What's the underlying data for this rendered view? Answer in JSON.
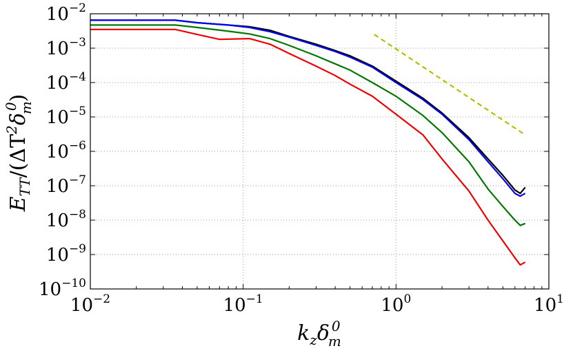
{
  "chart_data": {
    "type": "line",
    "title": "",
    "xscale": "log",
    "yscale": "log",
    "xlim": [
      0.01,
      10
    ],
    "ylim": [
      1e-10,
      0.01
    ],
    "xlabel": "k_z δ_m^0",
    "ylabel": "E_TT/(ΔT^2 δ_m^0)",
    "xticks": [
      {
        "base": "10",
        "exp": "−2"
      },
      {
        "base": "10",
        "exp": "−1"
      },
      {
        "base": "10",
        "exp": "0"
      },
      {
        "base": "10",
        "exp": "1"
      }
    ],
    "yticks": [
      {
        "base": "10",
        "exp": "−10"
      },
      {
        "base": "10",
        "exp": "−9"
      },
      {
        "base": "10",
        "exp": "−8"
      },
      {
        "base": "10",
        "exp": "−7"
      },
      {
        "base": "10",
        "exp": "−6"
      },
      {
        "base": "10",
        "exp": "−5"
      },
      {
        "base": "10",
        "exp": "−4"
      },
      {
        "base": "10",
        "exp": "−3"
      },
      {
        "base": "10",
        "exp": "−2"
      }
    ],
    "grid": true,
    "series": [
      {
        "name": "black",
        "color": "#000000",
        "style": "solid",
        "x": [
          0.01,
          0.036,
          0.05,
          0.08,
          0.11,
          0.15,
          0.2,
          0.3,
          0.4,
          0.5,
          0.7,
          1.0,
          1.5,
          2.0,
          3.0,
          4.0,
          5.0,
          6.0,
          6.5,
          7.0
        ],
        "y": [
          0.0065,
          0.0065,
          0.0055,
          0.0047,
          0.0042,
          0.0033,
          0.0022,
          0.0013,
          0.00085,
          0.0006,
          0.0003,
          0.00011,
          3.5e-05,
          1.3e-05,
          2.5e-06,
          6e-07,
          2e-07,
          7.5e-08,
          6e-08,
          9e-08
        ]
      },
      {
        "name": "blue",
        "color": "#0000ee",
        "style": "solid",
        "x": [
          0.01,
          0.036,
          0.05,
          0.08,
          0.11,
          0.15,
          0.2,
          0.3,
          0.4,
          0.5,
          0.7,
          1.0,
          1.5,
          2.0,
          3.0,
          4.0,
          5.0,
          6.0,
          6.5,
          7.0
        ],
        "y": [
          0.0065,
          0.0065,
          0.0055,
          0.0047,
          0.004,
          0.003,
          0.0021,
          0.0012,
          0.0008,
          0.00055,
          0.00028,
          0.0001,
          3.2e-05,
          1.2e-05,
          2.2e-06,
          5e-07,
          1.6e-07,
          6e-08,
          5e-08,
          6e-08
        ]
      },
      {
        "name": "green",
        "color": "#007700",
        "style": "solid",
        "x": [
          0.01,
          0.036,
          0.05,
          0.08,
          0.11,
          0.15,
          0.2,
          0.3,
          0.4,
          0.5,
          0.7,
          1.0,
          1.5,
          2.0,
          3.0,
          4.0,
          5.0,
          6.0,
          6.5,
          7.0
        ],
        "y": [
          0.0047,
          0.0047,
          0.004,
          0.0031,
          0.0026,
          0.0019,
          0.0012,
          0.0006,
          0.00035,
          0.00023,
          0.0001,
          4e-05,
          1.1e-05,
          3.5e-06,
          5e-07,
          8e-08,
          2.5e-08,
          1e-08,
          7e-09,
          8e-09
        ]
      },
      {
        "name": "red",
        "color": "#ee0000",
        "style": "solid",
        "x": [
          0.01,
          0.036,
          0.05,
          0.07,
          0.11,
          0.15,
          0.2,
          0.3,
          0.4,
          0.5,
          0.7,
          1.0,
          1.5,
          2.0,
          3.0,
          4.0,
          5.0,
          6.0,
          6.5,
          7.0
        ],
        "y": [
          0.0035,
          0.0035,
          0.0025,
          0.0018,
          0.0019,
          0.0013,
          0.0007,
          0.0003,
          0.00016,
          9e-05,
          4e-05,
          1.2e-05,
          3e-06,
          6e-07,
          7e-08,
          1e-08,
          2.5e-09,
          8e-10,
          5e-10,
          6e-10
        ]
      },
      {
        "name": "reference-slope",
        "color": "#bbbb00",
        "style": "dashed",
        "x": [
          0.72,
          7.0
        ],
        "y": [
          0.0025,
          3e-06
        ]
      }
    ]
  }
}
